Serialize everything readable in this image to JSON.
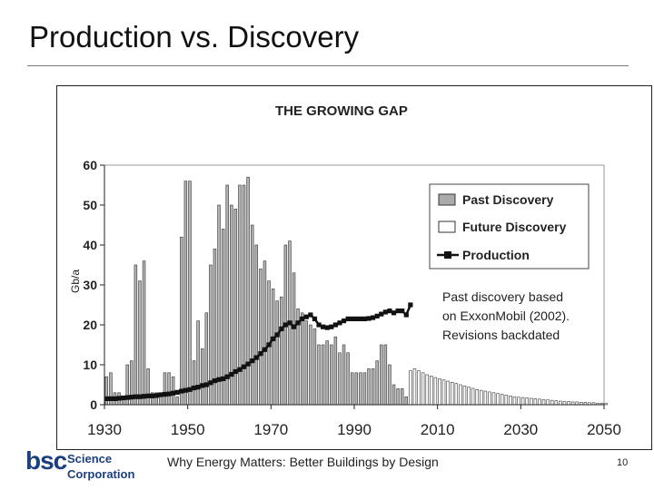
{
  "slide": {
    "title": "Production vs. Discovery",
    "footer": "Why Energy Matters: Better Buildings by Design",
    "page_number": "10",
    "logo": {
      "mark": "bsc",
      "line1": "Science",
      "line2": "Corporation"
    }
  },
  "chart_data": {
    "type": "bar",
    "title": "THE GROWING GAP",
    "ylabel": "Gb/a",
    "xlabel": "",
    "xlim": [
      1930,
      2050
    ],
    "ylim": [
      0,
      60
    ],
    "yticks": [
      0,
      10,
      20,
      30,
      40,
      50,
      60
    ],
    "xticks": [
      1930,
      1950,
      1970,
      1990,
      2010,
      2030,
      2050
    ],
    "legend_position": "top-right",
    "annotation": [
      "Past discovery based",
      "on ExxonMobil (2002).",
      "Revisions backdated"
    ],
    "series": [
      {
        "name": "Past Discovery",
        "style": "gray-bars",
        "x": [
          1930,
          1931,
          1932,
          1933,
          1934,
          1935,
          1936,
          1937,
          1938,
          1939,
          1940,
          1941,
          1942,
          1943,
          1944,
          1945,
          1946,
          1947,
          1948,
          1949,
          1950,
          1951,
          1952,
          1953,
          1954,
          1955,
          1956,
          1957,
          1958,
          1959,
          1960,
          1961,
          1962,
          1963,
          1964,
          1965,
          1966,
          1967,
          1968,
          1969,
          1970,
          1971,
          1972,
          1973,
          1974,
          1975,
          1976,
          1977,
          1978,
          1979,
          1980,
          1981,
          1982,
          1983,
          1984,
          1985,
          1986,
          1987,
          1988,
          1989,
          1990,
          1991,
          1992,
          1993,
          1994,
          1995,
          1996,
          1997,
          1998,
          1999,
          2000,
          2001,
          2002
        ],
        "values": [
          7,
          8,
          3,
          3,
          2,
          10,
          11,
          35,
          31,
          36,
          9,
          3,
          3,
          3,
          8,
          8,
          7,
          2,
          42,
          56,
          56,
          11,
          21,
          14,
          23,
          35,
          39,
          50,
          44,
          55,
          50,
          49,
          55,
          55,
          57,
          45,
          40,
          34,
          36,
          31,
          29,
          26,
          27,
          40,
          41,
          33,
          24,
          23,
          21,
          20,
          19,
          15,
          15,
          16,
          15,
          17,
          13,
          15,
          13,
          8,
          8,
          8,
          8,
          9,
          9,
          11,
          15,
          15,
          10,
          5,
          4,
          4,
          2
        ]
      },
      {
        "name": "Future Discovery",
        "style": "white-bars",
        "x": [
          2003,
          2004,
          2005,
          2006,
          2007,
          2008,
          2009,
          2010,
          2011,
          2012,
          2013,
          2014,
          2015,
          2016,
          2017,
          2018,
          2019,
          2020,
          2021,
          2022,
          2023,
          2024,
          2025,
          2026,
          2027,
          2028,
          2029,
          2030,
          2031,
          2032,
          2033,
          2034,
          2035,
          2036,
          2037,
          2038,
          2039,
          2040,
          2041,
          2042,
          2043,
          2044,
          2045,
          2046,
          2047,
          2048,
          2049,
          2050
        ],
        "values": [
          8.5,
          9,
          8.5,
          8,
          7.5,
          7.2,
          6.8,
          6.5,
          6.2,
          5.9,
          5.6,
          5.3,
          5,
          4.7,
          4.4,
          4.1,
          3.8,
          3.6,
          3.4,
          3.2,
          3,
          2.8,
          2.6,
          2.4,
          2.2,
          2,
          1.9,
          1.8,
          1.7,
          1.6,
          1.5,
          1.4,
          1.3,
          1.2,
          1.1,
          1,
          0.9,
          0.8,
          0.8,
          0.7,
          0.7,
          0.6,
          0.6,
          0.5,
          0.5,
          0.4,
          0.4,
          0.3
        ]
      },
      {
        "name": "Production",
        "style": "black-line-markers",
        "x": [
          1930,
          1931,
          1932,
          1933,
          1934,
          1935,
          1936,
          1937,
          1938,
          1939,
          1940,
          1941,
          1942,
          1943,
          1944,
          1945,
          1946,
          1947,
          1948,
          1949,
          1950,
          1951,
          1952,
          1953,
          1954,
          1955,
          1956,
          1957,
          1958,
          1959,
          1960,
          1961,
          1962,
          1963,
          1964,
          1965,
          1966,
          1967,
          1968,
          1969,
          1970,
          1971,
          1972,
          1973,
          1974,
          1975,
          1976,
          1977,
          1978,
          1979,
          1980,
          1981,
          1982,
          1983,
          1984,
          1985,
          1986,
          1987,
          1988,
          1989,
          1990,
          1991,
          1992,
          1993,
          1994,
          1995,
          1996,
          1997,
          1998,
          1999,
          2000,
          2001,
          2002,
          2003
        ],
        "values": [
          1.5,
          1.5,
          1.5,
          1.6,
          1.7,
          1.8,
          1.9,
          2,
          2,
          2.1,
          2.2,
          2.2,
          2.3,
          2.5,
          2.6,
          2.7,
          2.9,
          3.1,
          3.4,
          3.6,
          3.8,
          4.2,
          4.4,
          4.8,
          5,
          5.5,
          6,
          6.3,
          6.5,
          7,
          7.6,
          8.3,
          8.8,
          9.5,
          10.2,
          11,
          11.8,
          12.8,
          13.8,
          15,
          16.5,
          17.5,
          19,
          20,
          20.5,
          19.5,
          20.5,
          21.5,
          22,
          22.5,
          21.5,
          20,
          19.5,
          19.3,
          19.5,
          20,
          20.5,
          21,
          21.5,
          21.5,
          21.5,
          21.5,
          21.5,
          21.6,
          21.8,
          22.2,
          22.7,
          23.2,
          23.5,
          23,
          23.5,
          23.5,
          22.5,
          25
        ]
      }
    ]
  }
}
